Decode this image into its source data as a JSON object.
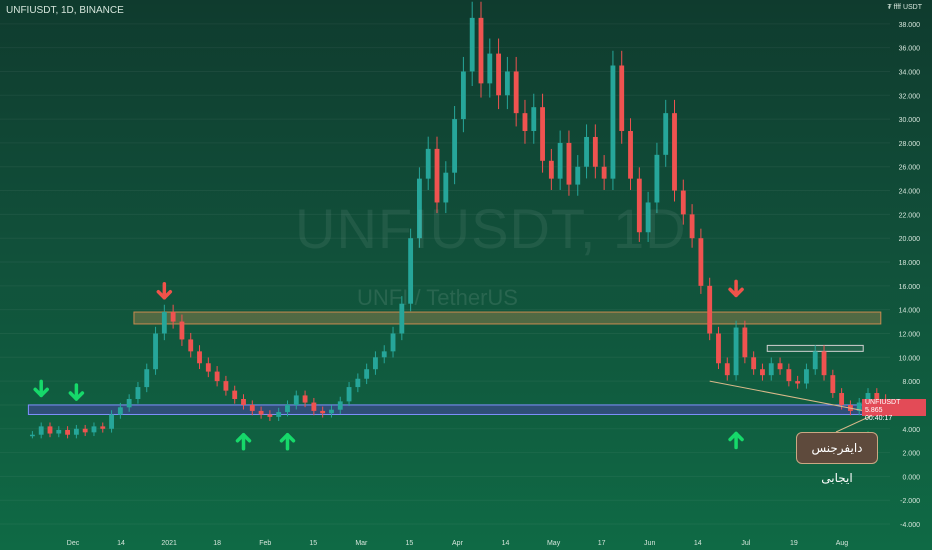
{
  "chart_title": "UNFIUSDT, 1D, BINANCE",
  "watermark_symbol": "UNFIUSDT, 1D",
  "watermark_pair": "UNFI / TetherUS",
  "unit_label": "₮ ffff\nUSDT",
  "price_badge": {
    "symbol": "UNFIUSDT",
    "price": "5.865",
    "timer": "00:40:17"
  },
  "annotation_text": "دایفرجنس ایجابی",
  "colors": {
    "bull": "#26a69a",
    "bear": "#ef5350",
    "zone_orange": "#c98b4f",
    "zone_blue": "#3a4b8a",
    "arrow_green": "#16d96a",
    "arrow_red": "#f0524a"
  },
  "chart_data": {
    "type": "candlestick",
    "y_axis_ticks": [
      "-4.000",
      "-2.000",
      "0.000",
      "2.000",
      "4.000",
      "6.000",
      "8.000",
      "10.000",
      "12.000",
      "14.000",
      "16.000",
      "18.000",
      "20.000",
      "22.000",
      "24.000",
      "26.000",
      "28.000",
      "30.000",
      "32.000",
      "34.000",
      "36.000",
      "38.000"
    ],
    "ylim": [
      -4.5,
      40
    ],
    "x_axis_labels": [
      "Dec",
      "14",
      "2021",
      "18",
      "Feb",
      "15",
      "Mar",
      "15",
      "Apr",
      "14",
      "May",
      "17",
      "Jun",
      "14",
      "Jul",
      "19",
      "Aug"
    ],
    "price_path": [
      [
        0,
        3.5
      ],
      [
        1,
        4.2
      ],
      [
        2,
        3.6
      ],
      [
        3,
        3.9
      ],
      [
        4,
        3.5
      ],
      [
        5,
        4.0
      ],
      [
        6,
        3.7
      ],
      [
        7,
        4.2
      ],
      [
        8,
        4.0
      ],
      [
        9,
        5.2
      ],
      [
        10,
        5.8
      ],
      [
        11,
        6.5
      ],
      [
        12,
        7.5
      ],
      [
        13,
        9.0
      ],
      [
        14,
        12.0
      ],
      [
        15,
        13.8
      ],
      [
        16,
        13.0
      ],
      [
        17,
        11.5
      ],
      [
        18,
        10.5
      ],
      [
        19,
        9.5
      ],
      [
        20,
        8.8
      ],
      [
        21,
        8.0
      ],
      [
        22,
        7.2
      ],
      [
        23,
        6.5
      ],
      [
        24,
        6.0
      ],
      [
        25,
        5.5
      ],
      [
        26,
        5.2
      ],
      [
        27,
        5.0
      ],
      [
        28,
        5.4
      ],
      [
        29,
        6.0
      ],
      [
        30,
        6.8
      ],
      [
        31,
        6.2
      ],
      [
        32,
        5.5
      ],
      [
        33,
        5.3
      ],
      [
        34,
        5.6
      ],
      [
        35,
        6.3
      ],
      [
        36,
        7.5
      ],
      [
        37,
        8.2
      ],
      [
        38,
        9.0
      ],
      [
        39,
        10.0
      ],
      [
        40,
        10.5
      ],
      [
        41,
        12.0
      ],
      [
        42,
        14.5
      ],
      [
        43,
        20.0
      ],
      [
        44,
        25.0
      ],
      [
        45,
        27.5
      ],
      [
        46,
        23.0
      ],
      [
        47,
        25.5
      ],
      [
        48,
        30.0
      ],
      [
        49,
        34.0
      ],
      [
        50,
        38.5
      ],
      [
        51,
        33.0
      ],
      [
        52,
        35.5
      ],
      [
        53,
        32.0
      ],
      [
        54,
        34.0
      ],
      [
        55,
        30.5
      ],
      [
        56,
        29.0
      ],
      [
        57,
        31.0
      ],
      [
        58,
        26.5
      ],
      [
        59,
        25.0
      ],
      [
        60,
        28.0
      ],
      [
        61,
        24.5
      ],
      [
        62,
        26.0
      ],
      [
        63,
        28.5
      ],
      [
        64,
        26.0
      ],
      [
        65,
        25.0
      ],
      [
        66,
        34.5
      ],
      [
        67,
        29.0
      ],
      [
        68,
        25.0
      ],
      [
        69,
        20.5
      ],
      [
        70,
        23.0
      ],
      [
        71,
        27.0
      ],
      [
        72,
        30.5
      ],
      [
        73,
        24.0
      ],
      [
        74,
        22.0
      ],
      [
        75,
        20.0
      ],
      [
        76,
        16.0
      ],
      [
        77,
        12.0
      ],
      [
        78,
        9.5
      ],
      [
        79,
        8.5
      ],
      [
        80,
        12.5
      ],
      [
        81,
        10.0
      ],
      [
        82,
        9.0
      ],
      [
        83,
        8.5
      ],
      [
        84,
        9.5
      ],
      [
        85,
        9.0
      ],
      [
        86,
        8.0
      ],
      [
        87,
        7.8
      ],
      [
        88,
        9.0
      ],
      [
        89,
        10.5
      ],
      [
        90,
        8.5
      ],
      [
        91,
        7.0
      ],
      [
        92,
        6.0
      ],
      [
        93,
        5.5
      ],
      [
        94,
        6.2
      ],
      [
        95,
        7.0
      ],
      [
        96,
        6.5
      ],
      [
        97,
        5.9
      ]
    ],
    "zones": [
      {
        "name": "resistance",
        "y_low": 12.8,
        "y_high": 13.8,
        "x_start": 12,
        "x_end": 96
      },
      {
        "name": "support",
        "y_low": 5.2,
        "y_high": 6.0,
        "x_start": 0,
        "x_end": 96
      },
      {
        "name": "small-box",
        "y_low": 10.5,
        "y_high": 11.0,
        "x_start": 84,
        "x_end": 94
      }
    ],
    "trendline": {
      "from": [
        77,
        8.0
      ],
      "to": [
        96,
        5.3
      ]
    },
    "down_arrows": [
      {
        "x": 1,
        "y": 6.8,
        "color": "green"
      },
      {
        "x": 5,
        "y": 6.5,
        "color": "green"
      },
      {
        "x": 15,
        "y": 15.0,
        "color": "red"
      },
      {
        "x": 80,
        "y": 15.2,
        "color": "red"
      }
    ],
    "up_arrows": [
      {
        "x": 24,
        "y": 3.5
      },
      {
        "x": 29,
        "y": 3.5
      },
      {
        "x": 80,
        "y": 3.6
      },
      {
        "x": 95,
        "y": 3.6
      }
    ]
  }
}
